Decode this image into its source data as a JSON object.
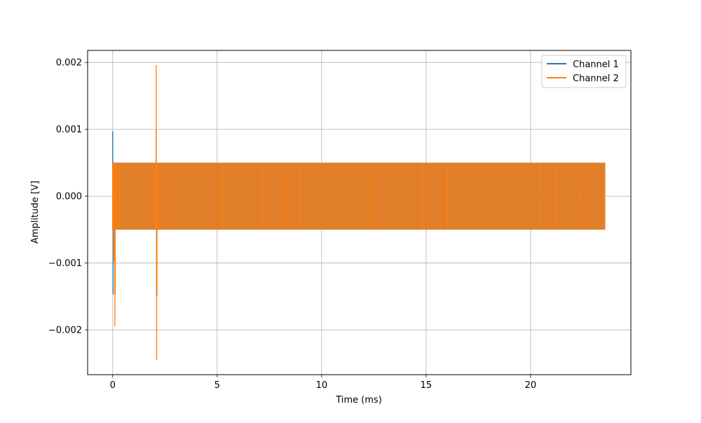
{
  "chart_data": {
    "type": "line",
    "title": "",
    "xlabel": "Time (ms)",
    "ylabel": "Amplitude [V]",
    "xlim": [
      -1.2,
      24.8
    ],
    "ylim": [
      -0.00267,
      0.00218
    ],
    "x_ticks": [
      0,
      5,
      10,
      15,
      20
    ],
    "x_tick_labels": [
      "0",
      "5",
      "10",
      "15",
      "20"
    ],
    "y_ticks": [
      -0.002,
      -0.001,
      0.0,
      0.001,
      0.002
    ],
    "y_tick_labels": [
      "−0.002",
      "−0.001",
      "0.000",
      "0.001",
      "0.002"
    ],
    "grid": true,
    "legend_position": "top-right",
    "series": [
      {
        "name": "Channel 1",
        "color": "#1f77b4",
        "base_levels": [
          -0.0005,
          0.0005
        ],
        "x": [
          0,
          0.02,
          0.04,
          0.06,
          0.1,
          0.15,
          2.05,
          2.08,
          2.1,
          2.12,
          2.15,
          4.6,
          7.9,
          11.4,
          12.4,
          12.3,
          14.6,
          15.0,
          15.9,
          16.5,
          18.5,
          18.7,
          19.2,
          19.6,
          19.8,
          20.3,
          20.6,
          21.5,
          21.9,
          23.55
        ],
        "y": [
          0.00097,
          -0.00147,
          -0.0005,
          0.0005,
          -0.001,
          0.0005,
          -0.0005,
          0.00098,
          -0.00147,
          0.0005,
          -0.0005,
          0.0005,
          0.0005,
          0.0005,
          0.0005,
          -0.0005,
          -0.0005,
          -0.0005,
          -0.0005,
          -0.0005,
          0.0005,
          0.0005,
          0.0005,
          0.0005,
          0.0005,
          0.0005,
          0.0005,
          0.0005,
          0.0005,
          0.0005
        ]
      },
      {
        "name": "Channel 2",
        "color": "#ff7f0e",
        "base_levels": [
          -0.0005,
          0.0005
        ],
        "x": [
          0.0,
          0.05,
          0.1,
          0.12,
          0.15,
          0.3,
          2.05,
          2.08,
          2.1,
          2.12,
          2.15,
          2.5,
          5.3,
          7.2,
          8.3,
          9.0,
          12.3,
          14.8,
          16.0,
          21.2,
          22.4,
          23.55
        ],
        "y": [
          0.0005,
          -0.00098,
          -0.00195,
          -0.00147,
          0.0005,
          -0.0005,
          0.0005,
          0.00196,
          -0.00245,
          -0.0015,
          0.0005,
          -0.0005,
          -0.0005,
          -0.0005,
          -0.0005,
          -0.0005,
          -0.0005,
          -0.0005,
          -0.0005,
          -0.0005,
          -0.0005,
          0.0005
        ]
      }
    ]
  }
}
